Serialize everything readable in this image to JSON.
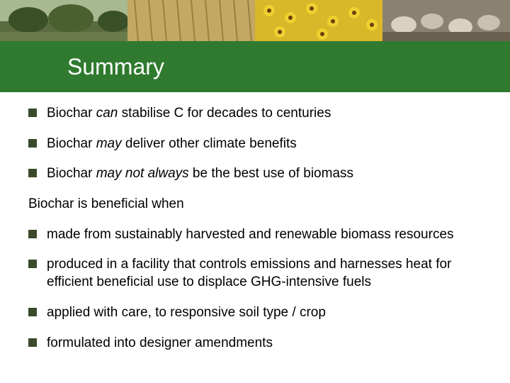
{
  "colors": {
    "title_bar_bg": "#2f7a2f",
    "title_text": "#ffffff",
    "bullet_square": "#3a4a2a",
    "body_text": "#000000",
    "banner_panels": [
      "#5a6b3f",
      "#c2a862",
      "#d8b828",
      "#8a8270"
    ]
  },
  "title": "Summary",
  "bullets_top": [
    {
      "prefix": "Biochar ",
      "em": "can",
      "rest": " stabilise C for decades to centuries"
    },
    {
      "prefix": "Biochar ",
      "em": "may",
      "rest": " deliver other climate benefits"
    },
    {
      "prefix": "Biochar ",
      "em": "may not always",
      "rest": " be the best use of biomass"
    }
  ],
  "section_heading": "Biochar is beneficial when",
  "bullets_bottom": [
    "made from sustainably harvested and renewable biomass resources",
    "produced in a facility that controls emissions and harnesses heat for efficient beneficial use to displace GHG-intensive fuels",
    "applied with care,  to responsive  soil type / crop",
    "formulated into designer amendments"
  ]
}
